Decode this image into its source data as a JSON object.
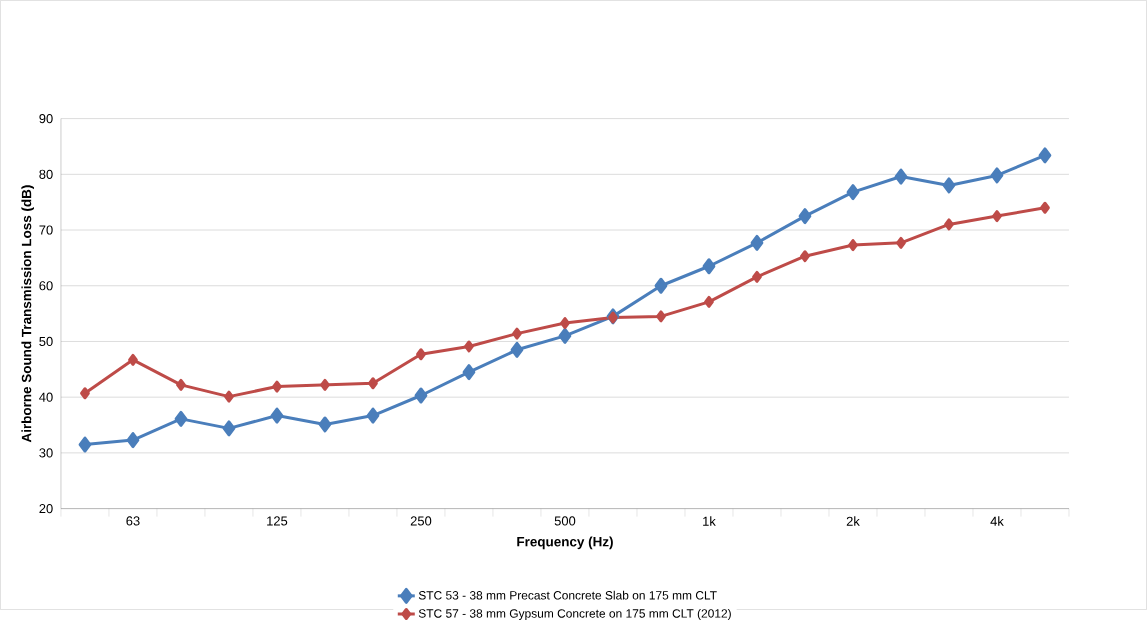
{
  "chart_data": {
    "type": "line",
    "xlabel": "Frequency (Hz)",
    "ylabel": "Airborne Sound Transmission Loss (dB)",
    "categories": [
      null,
      "63",
      null,
      null,
      "125",
      null,
      null,
      "250",
      null,
      null,
      "500",
      null,
      null,
      "1k",
      null,
      null,
      "2k",
      null,
      null,
      "4k",
      null
    ],
    "series": [
      {
        "name": "STC 53 - 38 mm Precast Concrete Slab on 175 mm CLT",
        "color": "#4a7ebb",
        "values": [
          31.5,
          32.3,
          36.1,
          34.4,
          36.7,
          35.1,
          36.7,
          40.3,
          44.5,
          48.5,
          51,
          54.5,
          60,
          63.5,
          67.7,
          72.5,
          76.8,
          79.6,
          78,
          79.8,
          83.4
        ]
      },
      {
        "name": "STC 57 - 38 mm Gypsum Concrete on 175 mm CLT (2012)",
        "color": "#be4b48",
        "values": [
          40.7,
          46.7,
          42.2,
          40.1,
          41.9,
          42.2,
          42.5,
          47.7,
          49.1,
          51.4,
          53.3,
          54.3,
          54.5,
          57.1,
          61.6,
          65.3,
          67.3,
          67.7,
          71,
          72.5,
          74
        ]
      }
    ],
    "ylim": [
      20,
      90
    ],
    "yticks": [
      20,
      30,
      40,
      50,
      60,
      70,
      80,
      90
    ],
    "grid": "y",
    "legend": "bottom",
    "marker": "diamond",
    "line_style": "solid"
  }
}
